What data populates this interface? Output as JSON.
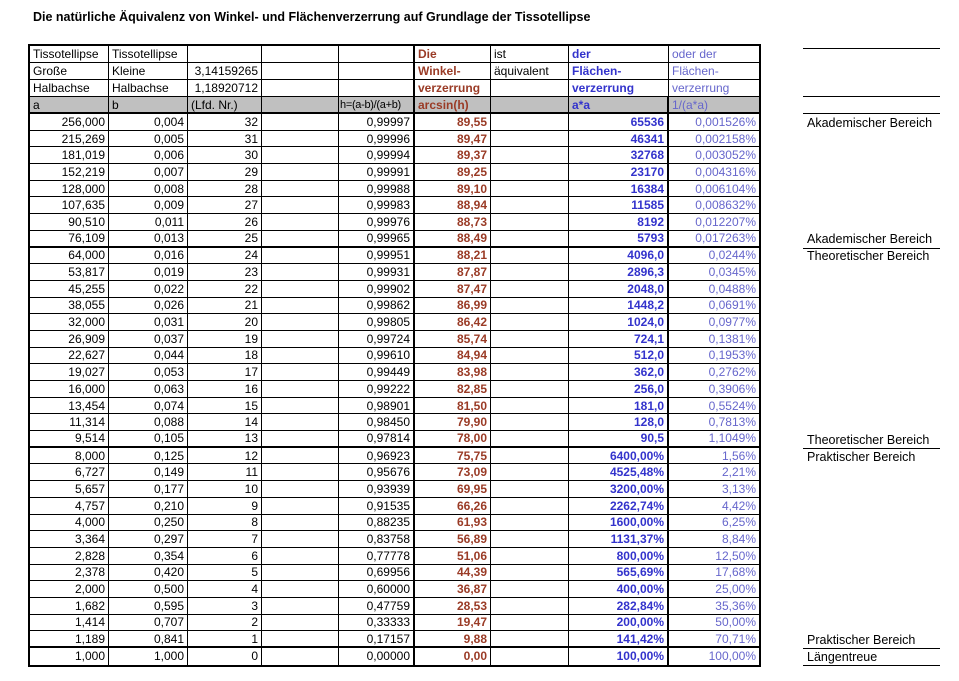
{
  "title": "Die natürliche Äquivalenz von Winkel- und Flächenverzerrung auf Grundlage der Tissotellipse",
  "colors": {
    "angle_red": "#9A3B26",
    "area_blue": "#3333CC",
    "area_light_blue": "#6666CC",
    "header_gray": "#C0C0C0"
  },
  "table": {
    "header": {
      "r1": [
        "Tissotellipse",
        "Tissotellipse",
        "",
        "",
        "",
        "Die",
        "ist",
        "der",
        "oder der"
      ],
      "r2": [
        "Große",
        "Kleine",
        "3,14159265",
        "",
        "",
        "Winkel-",
        "äquivalent",
        "Flächen-",
        "Flächen-"
      ],
      "r3": [
        "Halbachse",
        "Halbachse",
        "1,18920712",
        "",
        "",
        "verzerrung",
        "",
        "verzerrung",
        "verzerrung"
      ],
      "r4": [
        "a",
        "b",
        "(Lfd. Nr.)",
        "",
        "h=(a-b)/(a+b)",
        "arcsin(h)",
        "",
        "a*a",
        "1/(a*a)"
      ]
    },
    "section_breaks_above_nr": [
      "24",
      "12",
      "0"
    ],
    "rows": [
      {
        "a": "256,000",
        "b": "0,004",
        "nr": "32",
        "h": "0,99997",
        "arcsin": "89,55",
        "aa": "65536",
        "inv": "0,001526%"
      },
      {
        "a": "215,269",
        "b": "0,005",
        "nr": "31",
        "h": "0,99996",
        "arcsin": "89,47",
        "aa": "46341",
        "inv": "0,002158%"
      },
      {
        "a": "181,019",
        "b": "0,006",
        "nr": "30",
        "h": "0,99994",
        "arcsin": "89,37",
        "aa": "32768",
        "inv": "0,003052%"
      },
      {
        "a": "152,219",
        "b": "0,007",
        "nr": "29",
        "h": "0,99991",
        "arcsin": "89,25",
        "aa": "23170",
        "inv": "0,004316%"
      },
      {
        "a": "128,000",
        "b": "0,008",
        "nr": "28",
        "h": "0,99988",
        "arcsin": "89,10",
        "aa": "16384",
        "inv": "0,006104%"
      },
      {
        "a": "107,635",
        "b": "0,009",
        "nr": "27",
        "h": "0,99983",
        "arcsin": "88,94",
        "aa": "11585",
        "inv": "0,008632%"
      },
      {
        "a": "90,510",
        "b": "0,011",
        "nr": "26",
        "h": "0,99976",
        "arcsin": "88,73",
        "aa": "8192",
        "inv": "0,012207%"
      },
      {
        "a": "76,109",
        "b": "0,013",
        "nr": "25",
        "h": "0,99965",
        "arcsin": "88,49",
        "aa": "5793",
        "inv": "0,017263%"
      },
      {
        "a": "64,000",
        "b": "0,016",
        "nr": "24",
        "h": "0,99951",
        "arcsin": "88,21",
        "aa": "4096,0",
        "inv": "0,0244%"
      },
      {
        "a": "53,817",
        "b": "0,019",
        "nr": "23",
        "h": "0,99931",
        "arcsin": "87,87",
        "aa": "2896,3",
        "inv": "0,0345%"
      },
      {
        "a": "45,255",
        "b": "0,022",
        "nr": "22",
        "h": "0,99902",
        "arcsin": "87,47",
        "aa": "2048,0",
        "inv": "0,0488%"
      },
      {
        "a": "38,055",
        "b": "0,026",
        "nr": "21",
        "h": "0,99862",
        "arcsin": "86,99",
        "aa": "1448,2",
        "inv": "0,0691%"
      },
      {
        "a": "32,000",
        "b": "0,031",
        "nr": "20",
        "h": "0,99805",
        "arcsin": "86,42",
        "aa": "1024,0",
        "inv": "0,0977%"
      },
      {
        "a": "26,909",
        "b": "0,037",
        "nr": "19",
        "h": "0,99724",
        "arcsin": "85,74",
        "aa": "724,1",
        "inv": "0,1381%"
      },
      {
        "a": "22,627",
        "b": "0,044",
        "nr": "18",
        "h": "0,99610",
        "arcsin": "84,94",
        "aa": "512,0",
        "inv": "0,1953%"
      },
      {
        "a": "19,027",
        "b": "0,053",
        "nr": "17",
        "h": "0,99449",
        "arcsin": "83,98",
        "aa": "362,0",
        "inv": "0,2762%"
      },
      {
        "a": "16,000",
        "b": "0,063",
        "nr": "16",
        "h": "0,99222",
        "arcsin": "82,85",
        "aa": "256,0",
        "inv": "0,3906%"
      },
      {
        "a": "13,454",
        "b": "0,074",
        "nr": "15",
        "h": "0,98901",
        "arcsin": "81,50",
        "aa": "181,0",
        "inv": "0,5524%"
      },
      {
        "a": "11,314",
        "b": "0,088",
        "nr": "14",
        "h": "0,98450",
        "arcsin": "79,90",
        "aa": "128,0",
        "inv": "0,7813%"
      },
      {
        "a": "9,514",
        "b": "0,105",
        "nr": "13",
        "h": "0,97814",
        "arcsin": "78,00",
        "aa": "90,5",
        "inv": "1,1049%"
      },
      {
        "a": "8,000",
        "b": "0,125",
        "nr": "12",
        "h": "0,96923",
        "arcsin": "75,75",
        "aa": "6400,00%",
        "inv": "1,56%"
      },
      {
        "a": "6,727",
        "b": "0,149",
        "nr": "11",
        "h": "0,95676",
        "arcsin": "73,09",
        "aa": "4525,48%",
        "inv": "2,21%"
      },
      {
        "a": "5,657",
        "b": "0,177",
        "nr": "10",
        "h": "0,93939",
        "arcsin": "69,95",
        "aa": "3200,00%",
        "inv": "3,13%"
      },
      {
        "a": "4,757",
        "b": "0,210",
        "nr": "9",
        "h": "0,91535",
        "arcsin": "66,26",
        "aa": "2262,74%",
        "inv": "4,42%"
      },
      {
        "a": "4,000",
        "b": "0,250",
        "nr": "8",
        "h": "0,88235",
        "arcsin": "61,93",
        "aa": "1600,00%",
        "inv": "6,25%"
      },
      {
        "a": "3,364",
        "b": "0,297",
        "nr": "7",
        "h": "0,83758",
        "arcsin": "56,89",
        "aa": "1131,37%",
        "inv": "8,84%"
      },
      {
        "a": "2,828",
        "b": "0,354",
        "nr": "6",
        "h": "0,77778",
        "arcsin": "51,06",
        "aa": "800,00%",
        "inv": "12,50%"
      },
      {
        "a": "2,378",
        "b": "0,420",
        "nr": "5",
        "h": "0,69956",
        "arcsin": "44,39",
        "aa": "565,69%",
        "inv": "17,68%"
      },
      {
        "a": "2,000",
        "b": "0,500",
        "nr": "4",
        "h": "0,60000",
        "arcsin": "36,87",
        "aa": "400,00%",
        "inv": "25,00%"
      },
      {
        "a": "1,682",
        "b": "0,595",
        "nr": "3",
        "h": "0,47759",
        "arcsin": "28,53",
        "aa": "282,84%",
        "inv": "35,36%"
      },
      {
        "a": "1,414",
        "b": "0,707",
        "nr": "2",
        "h": "0,33333",
        "arcsin": "19,47",
        "aa": "200,00%",
        "inv": "50,00%"
      },
      {
        "a": "1,189",
        "b": "0,841",
        "nr": "1",
        "h": "0,17157",
        "arcsin": "9,88",
        "aa": "141,42%",
        "inv": "70,71%"
      },
      {
        "a": "1,000",
        "b": "1,000",
        "nr": "0",
        "h": "0,00000",
        "arcsin": "0,00",
        "aa": "100,00%",
        "inv": "100,00%"
      }
    ]
  },
  "annotations": {
    "items": [
      {
        "label": "Akademischer Bereich",
        "row_nr": "32"
      },
      {
        "label": "Akademischer Bereich",
        "row_nr": "25"
      },
      {
        "label": "Theoretischer Bereich",
        "row_nr": "24"
      },
      {
        "label": "Theoretischer Bereich",
        "row_nr": "13"
      },
      {
        "label": "Praktischer Bereich",
        "row_nr": "12"
      },
      {
        "label": "Praktischer Bereich",
        "row_nr": "1"
      },
      {
        "label": "Längentreue",
        "row_nr": "0"
      }
    ]
  }
}
